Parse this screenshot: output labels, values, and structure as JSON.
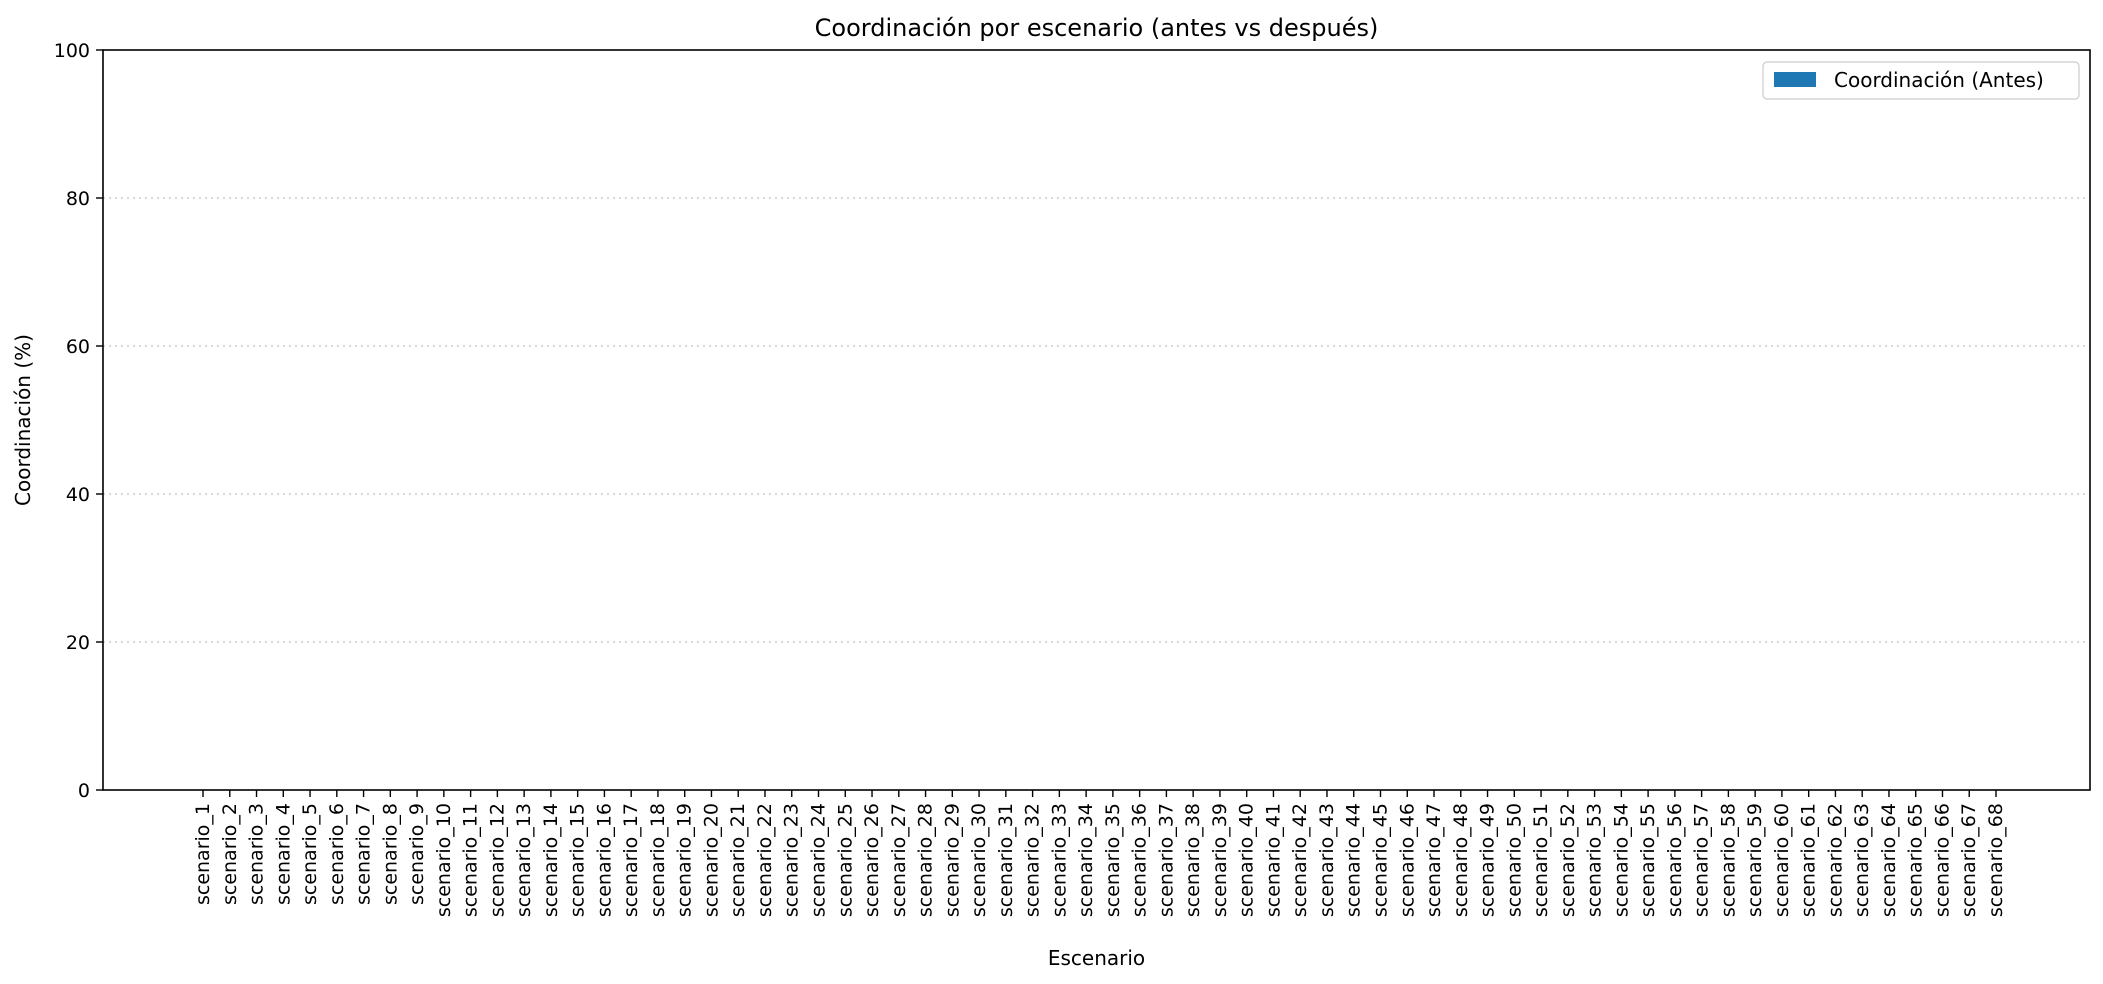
{
  "chart_data": {
    "type": "bar",
    "title": "Coordinación por escenario (antes vs después)",
    "xlabel": "Escenario",
    "ylabel": "Coordinación (%)",
    "ylim": [
      0,
      100
    ],
    "yticks": [
      0,
      20,
      40,
      60,
      80,
      100
    ],
    "grid": "y-dotted",
    "legend_position": "top-right",
    "categories": [
      "scenario_1",
      "scenario_2",
      "scenario_3",
      "scenario_4",
      "scenario_5",
      "scenario_6",
      "scenario_7",
      "scenario_8",
      "scenario_9",
      "scenario_10",
      "scenario_11",
      "scenario_12",
      "scenario_13",
      "scenario_14",
      "scenario_15",
      "scenario_16",
      "scenario_17",
      "scenario_18",
      "scenario_19",
      "scenario_20",
      "scenario_21",
      "scenario_22",
      "scenario_23",
      "scenario_24",
      "scenario_25",
      "scenario_26",
      "scenario_27",
      "scenario_28",
      "scenario_29",
      "scenario_30",
      "scenario_31",
      "scenario_32",
      "scenario_33",
      "scenario_34",
      "scenario_35",
      "scenario_36",
      "scenario_37",
      "scenario_38",
      "scenario_39",
      "scenario_40",
      "scenario_41",
      "scenario_42",
      "scenario_43",
      "scenario_44",
      "scenario_45",
      "scenario_46",
      "scenario_47",
      "scenario_48",
      "scenario_49",
      "scenario_50",
      "scenario_51",
      "scenario_52",
      "scenario_53",
      "scenario_54",
      "scenario_55",
      "scenario_56",
      "scenario_57",
      "scenario_58",
      "scenario_59",
      "scenario_60",
      "scenario_61",
      "scenario_62",
      "scenario_63",
      "scenario_64",
      "scenario_65",
      "scenario_66",
      "scenario_67",
      "scenario_68"
    ],
    "series": [
      {
        "name": "Coordinación (Antes)",
        "color": "#1f77b4",
        "values": [
          0,
          0,
          0,
          0,
          0,
          0,
          0,
          0,
          0,
          0,
          0,
          0,
          0,
          0,
          0,
          0,
          0,
          0,
          0,
          0,
          0,
          0,
          0,
          0,
          0,
          0,
          0,
          0,
          0,
          0,
          0,
          0,
          0,
          0,
          0,
          0,
          0,
          0,
          0,
          0,
          0,
          0,
          0,
          0,
          0,
          0,
          0,
          0,
          0,
          0,
          0,
          0,
          0,
          0,
          0,
          0,
          0,
          0,
          0,
          0,
          0,
          0,
          0,
          0,
          0,
          0,
          0,
          0
        ]
      }
    ]
  }
}
